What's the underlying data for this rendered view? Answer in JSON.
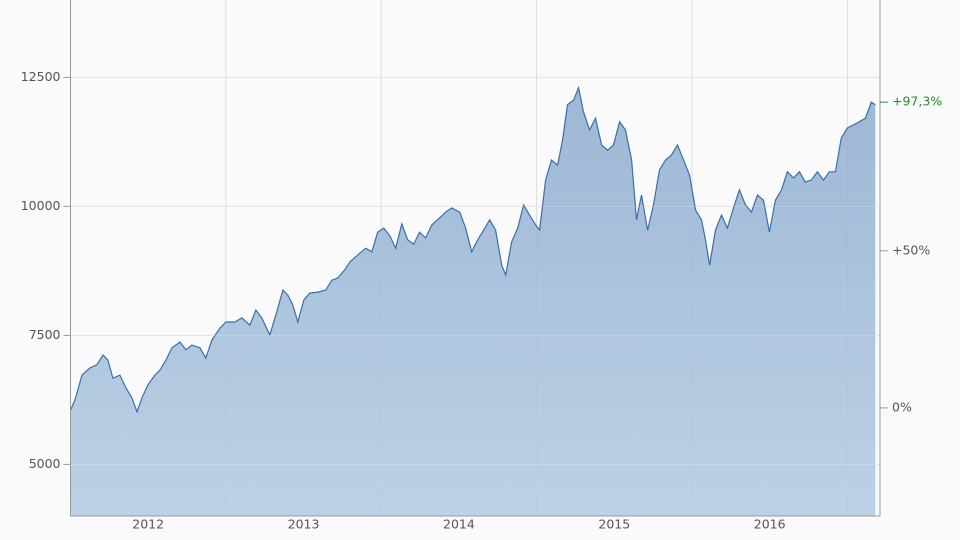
{
  "chart_data": {
    "type": "area",
    "x": [
      2012.0,
      2012.029,
      2012.074,
      2012.125,
      2012.17,
      2012.209,
      2012.241,
      2012.273,
      2012.318,
      2012.357,
      2012.395,
      2012.428,
      2012.46,
      2012.498,
      2012.543,
      2012.576,
      2012.614,
      2012.653,
      2012.704,
      2012.743,
      2012.781,
      2012.833,
      2012.871,
      2012.91,
      2012.961,
      2013.0,
      2013.058,
      2013.103,
      2013.154,
      2013.193,
      2013.231,
      2013.283,
      2013.322,
      2013.367,
      2013.399,
      2013.431,
      2013.463,
      2013.502,
      2013.54,
      2013.592,
      2013.643,
      2013.682,
      2013.72,
      2013.765,
      2013.797,
      2013.849,
      2013.9,
      2013.939,
      2013.977,
      2014.016,
      2014.055,
      2014.093,
      2014.132,
      2014.17,
      2014.209,
      2014.247,
      2014.286,
      2014.325,
      2014.376,
      2014.415,
      2014.453,
      2014.505,
      2014.543,
      2014.582,
      2014.621,
      2014.659,
      2014.698,
      2014.736,
      2014.775,
      2014.801,
      2014.839,
      2014.878,
      2014.916,
      2014.955,
      2014.994,
      2015.019,
      2015.058,
      2015.096,
      2015.135,
      2015.167,
      2015.199,
      2015.238,
      2015.27,
      2015.302,
      2015.341,
      2015.379,
      2015.418,
      2015.457,
      2015.495,
      2015.534,
      2015.572,
      2015.611,
      2015.643,
      2015.675,
      2015.714,
      2015.752,
      2015.791,
      2015.83,
      2015.868,
      2015.907,
      2015.945,
      2015.984,
      2016.023,
      2016.061,
      2016.087,
      2016.113,
      2016.151,
      2016.19,
      2016.228,
      2016.267,
      2016.305,
      2016.344,
      2016.383,
      2016.421,
      2016.46,
      2016.498,
      2016.537,
      2016.576,
      2016.614,
      2016.653,
      2016.691,
      2016.73,
      2016.768,
      2016.807,
      2016.846,
      2016.884,
      2016.923,
      2016.961,
      2017.0,
      2017.039,
      2017.077,
      2017.116,
      2017.154,
      2017.18
    ],
    "values": [
      6050,
      6250,
      6730,
      6870,
      6930,
      7120,
      7020,
      6670,
      6730,
      6480,
      6290,
      6020,
      6290,
      6540,
      6730,
      6830,
      7020,
      7260,
      7370,
      7220,
      7310,
      7260,
      7060,
      7410,
      7640,
      7760,
      7760,
      7840,
      7700,
      7990,
      7840,
      7510,
      7900,
      8380,
      8280,
      8090,
      7760,
      8190,
      8320,
      8340,
      8380,
      8570,
      8610,
      8770,
      8920,
      9060,
      9190,
      9120,
      9500,
      9580,
      9430,
      9190,
      9660,
      9350,
      9270,
      9500,
      9390,
      9640,
      9780,
      9890,
      9970,
      9890,
      9580,
      9120,
      9350,
      9540,
      9740,
      9540,
      8860,
      8670,
      9310,
      9580,
      10030,
      9830,
      9640,
      9540,
      10510,
      10900,
      10800,
      11290,
      11970,
      12060,
      12300,
      11830,
      11480,
      11710,
      11190,
      11090,
      11190,
      11640,
      11480,
      10900,
      9740,
      10220,
      9540,
      10030,
      10710,
      10900,
      11000,
      11190,
      10900,
      10610,
      9930,
      9740,
      9350,
      8860,
      9540,
      9830,
      9580,
      9970,
      10320,
      10030,
      9890,
      10220,
      10120,
      9500,
      10120,
      10320,
      10670,
      10550,
      10670,
      10470,
      10510,
      10670,
      10510,
      10670,
      10670,
      11330,
      11520,
      11580,
      11640,
      11710,
      12020,
      11970
    ],
    "color": "#3a6fa8",
    "fill": "#a3bedb",
    "xlim": [
      2012.0,
      2017.21
    ],
    "xticks": [
      {
        "value": 2012.5,
        "label": "2012"
      },
      {
        "value": 2013.5,
        "label": "2013"
      },
      {
        "value": 2014.5,
        "label": "2014"
      },
      {
        "value": 2015.5,
        "label": "2015"
      },
      {
        "value": 2016.5,
        "label": "2016"
      }
    ],
    "xgrid": [
      2013,
      2014,
      2015,
      2016,
      2017
    ],
    "ylim": [
      4000,
      14000
    ],
    "yticks": [
      5000,
      7500,
      10000,
      12500
    ],
    "y2lim": [
      -34.4,
      129.8
    ],
    "y2ticks": [
      {
        "value": 0,
        "label": "0%"
      },
      {
        "value": 50,
        "label": "+50%"
      },
      {
        "value": 97.3,
        "label": "+97,3%",
        "color": "#2a8a2a"
      }
    ],
    "grid": true
  }
}
